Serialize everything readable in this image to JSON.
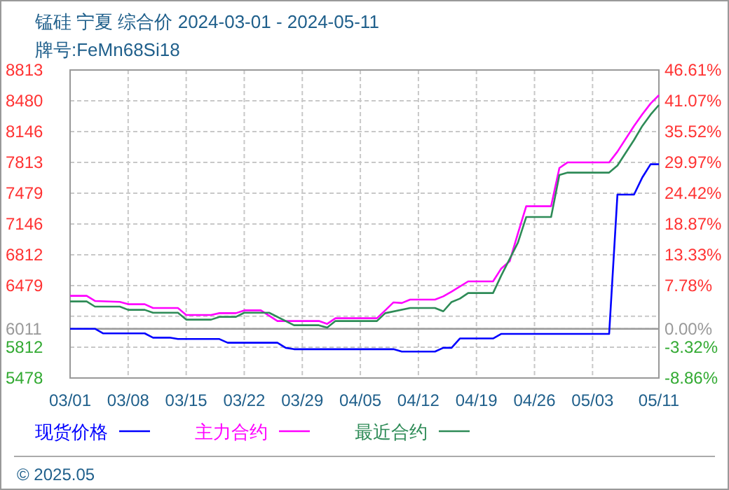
{
  "chart_data": {
    "type": "line",
    "title": "锰硅  宁夏  综合价 2024-03-01 - 2024-05-11",
    "subtitle": "牌号:FeMn68Si18",
    "xlim": [
      "2024-03-01",
      "2024-05-11"
    ],
    "xticks": [
      {
        "value": "2024-03-01",
        "label": "03/01"
      },
      {
        "value": "2024-03-08",
        "label": "03/08"
      },
      {
        "value": "2024-03-15",
        "label": "03/15"
      },
      {
        "value": "2024-03-22",
        "label": "03/22"
      },
      {
        "value": "2024-03-29",
        "label": "03/29"
      },
      {
        "value": "2024-04-05",
        "label": "04/05"
      },
      {
        "value": "2024-04-12",
        "label": "04/12"
      },
      {
        "value": "2024-04-19",
        "label": "04/19"
      },
      {
        "value": "2024-04-26",
        "label": "04/26"
      },
      {
        "value": "2024-05-03",
        "label": "05/03"
      },
      {
        "value": "2024-05-11",
        "label": "05/11"
      }
    ],
    "ylim": [
      5478,
      8813
    ],
    "yticks": [
      5478,
      5812,
      6011,
      {
        "value": 6146,
        "label": null
      },
      6479,
      6812,
      7146,
      7479,
      7813,
      8146,
      8480,
      8813
    ],
    "y2lim": [
      -8.86,
      46.61
    ],
    "y2ticks": [
      {
        "value": -8.86,
        "label": "-8.86%"
      },
      {
        "value": -3.32,
        "label": "-3.32%"
      },
      {
        "value": 0,
        "label": "0.00%"
      },
      {
        "value": 7.78,
        "label": "7.78%"
      },
      {
        "value": 13.33,
        "label": "13.33%"
      },
      {
        "value": 18.87,
        "label": "18.87%"
      },
      {
        "value": 24.42,
        "label": "24.42%"
      },
      {
        "value": 29.97,
        "label": "29.97%"
      },
      {
        "value": 35.52,
        "label": "35.52%"
      },
      {
        "value": 41.07,
        "label": "41.07%"
      },
      {
        "value": 46.61,
        "label": "46.61%"
      }
    ],
    "grid": true,
    "legend": "bottom",
    "ref_lines": [
      {
        "axis": "y",
        "value": 6011,
        "color": "#999999"
      }
    ],
    "annotations": [
      "© 2025.05"
    ],
    "series": [
      {
        "name": "现货价格",
        "color": "#0000ff",
        "x": [
          "2024-03-01",
          "2024-03-04",
          "2024-03-05",
          "2024-03-10",
          "2024-03-11",
          "2024-03-13",
          "2024-03-14",
          "2024-03-19",
          "2024-03-20",
          "2024-03-26",
          "2024-03-27",
          "2024-03-28",
          "2024-04-09",
          "2024-04-10",
          "2024-04-14",
          "2024-04-15",
          "2024-04-16",
          "2024-04-17",
          "2024-04-21",
          "2024-04-22",
          "2024-05-05",
          "2024-05-06",
          "2024-05-08",
          "2024-05-09",
          "2024-05-10",
          "2024-05-11"
        ],
        "values": [
          6011,
          6011,
          5961,
          5961,
          5915,
          5915,
          5900,
          5900,
          5860,
          5860,
          5805,
          5790,
          5790,
          5764,
          5764,
          5805,
          5805,
          5906,
          5906,
          5956,
          5956,
          7464,
          7464,
          7650,
          7793,
          7793
        ]
      },
      {
        "name": "主力合约",
        "color": "#ff00ff",
        "x": [
          "2024-03-01",
          "2024-03-03",
          "2024-03-04",
          "2024-03-07",
          "2024-03-08",
          "2024-03-10",
          "2024-03-11",
          "2024-03-14",
          "2024-03-15",
          "2024-03-18",
          "2024-03-19",
          "2024-03-21",
          "2024-03-22",
          "2024-03-24",
          "2024-03-26",
          "2024-03-31",
          "2024-04-01",
          "2024-04-02",
          "2024-04-07",
          "2024-04-08",
          "2024-04-09",
          "2024-04-10",
          "2024-04-11",
          "2024-04-14",
          "2024-04-15",
          "2024-04-16",
          "2024-04-18",
          "2024-04-21",
          "2024-04-22",
          "2024-04-23",
          "2024-04-24",
          "2024-04-25",
          "2024-04-28",
          "2024-04-29",
          "2024-04-30",
          "2024-05-05",
          "2024-05-06",
          "2024-05-08",
          "2024-05-09",
          "2024-05-10",
          "2024-05-11"
        ],
        "values": [
          6368,
          6368,
          6312,
          6302,
          6277,
          6277,
          6236,
          6236,
          6160,
          6160,
          6180,
          6180,
          6210,
          6210,
          6095,
          6095,
          6064,
          6125,
          6125,
          6210,
          6297,
          6290,
          6327,
          6327,
          6362,
          6413,
          6524,
          6524,
          6665,
          6741,
          7044,
          7338,
          7338,
          7752,
          7813,
          7813,
          7929,
          8207,
          8333,
          8450,
          8540
        ]
      },
      {
        "name": "最近合约",
        "color": "#2e8b57",
        "x": [
          "2024-03-01",
          "2024-03-03",
          "2024-03-04",
          "2024-03-07",
          "2024-03-08",
          "2024-03-10",
          "2024-03-11",
          "2024-03-14",
          "2024-03-15",
          "2024-03-18",
          "2024-03-19",
          "2024-03-21",
          "2024-03-22",
          "2024-03-25",
          "2024-03-28",
          "2024-03-31",
          "2024-04-01",
          "2024-04-02",
          "2024-04-07",
          "2024-04-08",
          "2024-04-11",
          "2024-04-14",
          "2024-04-15",
          "2024-04-16",
          "2024-04-17",
          "2024-04-18",
          "2024-04-21",
          "2024-04-22",
          "2024-04-24",
          "2024-04-25",
          "2024-04-28",
          "2024-04-29",
          "2024-04-30",
          "2024-05-05",
          "2024-05-06",
          "2024-05-08",
          "2024-05-09",
          "2024-05-10",
          "2024-05-11"
        ],
        "values": [
          6307,
          6307,
          6251,
          6251,
          6216,
          6216,
          6185,
          6185,
          6110,
          6110,
          6140,
          6140,
          6185,
          6185,
          6049,
          6049,
          6024,
          6095,
          6095,
          6180,
          6236,
          6236,
          6200,
          6301,
          6337,
          6398,
          6398,
          6589,
          6944,
          7221,
          7221,
          7676,
          7702,
          7702,
          7778,
          8055,
          8207,
          8330,
          8434
        ]
      }
    ]
  }
}
